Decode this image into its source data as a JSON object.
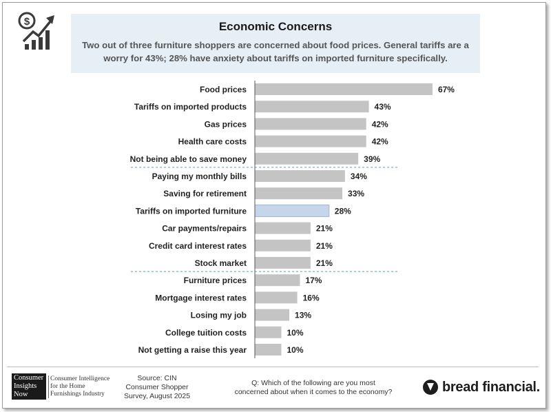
{
  "header": {
    "title": "Economic Concerns",
    "subtitle": "Two out of three furniture shoppers are concerned about food prices. General tariffs are a worry for 43%; 28% have anxiety about tariffs on imported furniture specifically."
  },
  "colors": {
    "bar": "#c4c4c4",
    "highlight_bar": "#c6d6ea",
    "header_bg": "#e6eef6",
    "divider": "#5aa3a8"
  },
  "icons": {
    "logo": "dollar-growth-chart-icon",
    "brand": "bread-financial-logo-icon"
  },
  "chart_data": {
    "type": "bar",
    "orientation": "horizontal",
    "title": "Economic Concerns",
    "categories": [
      "Food prices",
      "Tariffs on imported products",
      "Gas prices",
      "Health care costs",
      "Not being able to save money",
      "Paying my monthly bills",
      "Saving for retirement",
      "Tariffs on imported furniture",
      "Car payments/repairs",
      "Credit card interest rates",
      "Stock market",
      "Furniture prices",
      "Mortgage interest rates",
      "Losing my job",
      "College tuition costs",
      "Not getting a raise this year"
    ],
    "values": [
      67,
      43,
      42,
      42,
      39,
      34,
      33,
      28,
      21,
      21,
      21,
      17,
      16,
      13,
      10,
      10
    ],
    "value_labels": [
      "67%",
      "43%",
      "42%",
      "42%",
      "39%",
      "34%",
      "33%",
      "28%",
      "21%",
      "21%",
      "21%",
      "17%",
      "16%",
      "13%",
      "10%",
      "10%"
    ],
    "highlight": "Tariffs on imported furniture",
    "group_dividers_after": [
      "Not being able to save money",
      "Stock market"
    ],
    "xlim": [
      0,
      100
    ],
    "grid": false,
    "legend": "none"
  },
  "footer": {
    "cin_logo": [
      "Consumer",
      "Insights",
      "Now"
    ],
    "cin_tagline": [
      "Consumer Intelligence",
      "for the Home",
      "Furnishings Industry"
    ],
    "source": [
      "Source: CIN",
      "Consumer Shopper",
      "Survey, August 2025"
    ],
    "question": [
      "Q: Which of the following are you most",
      "concerned about when it comes to the economy?"
    ],
    "brand_name": "bread financial."
  }
}
